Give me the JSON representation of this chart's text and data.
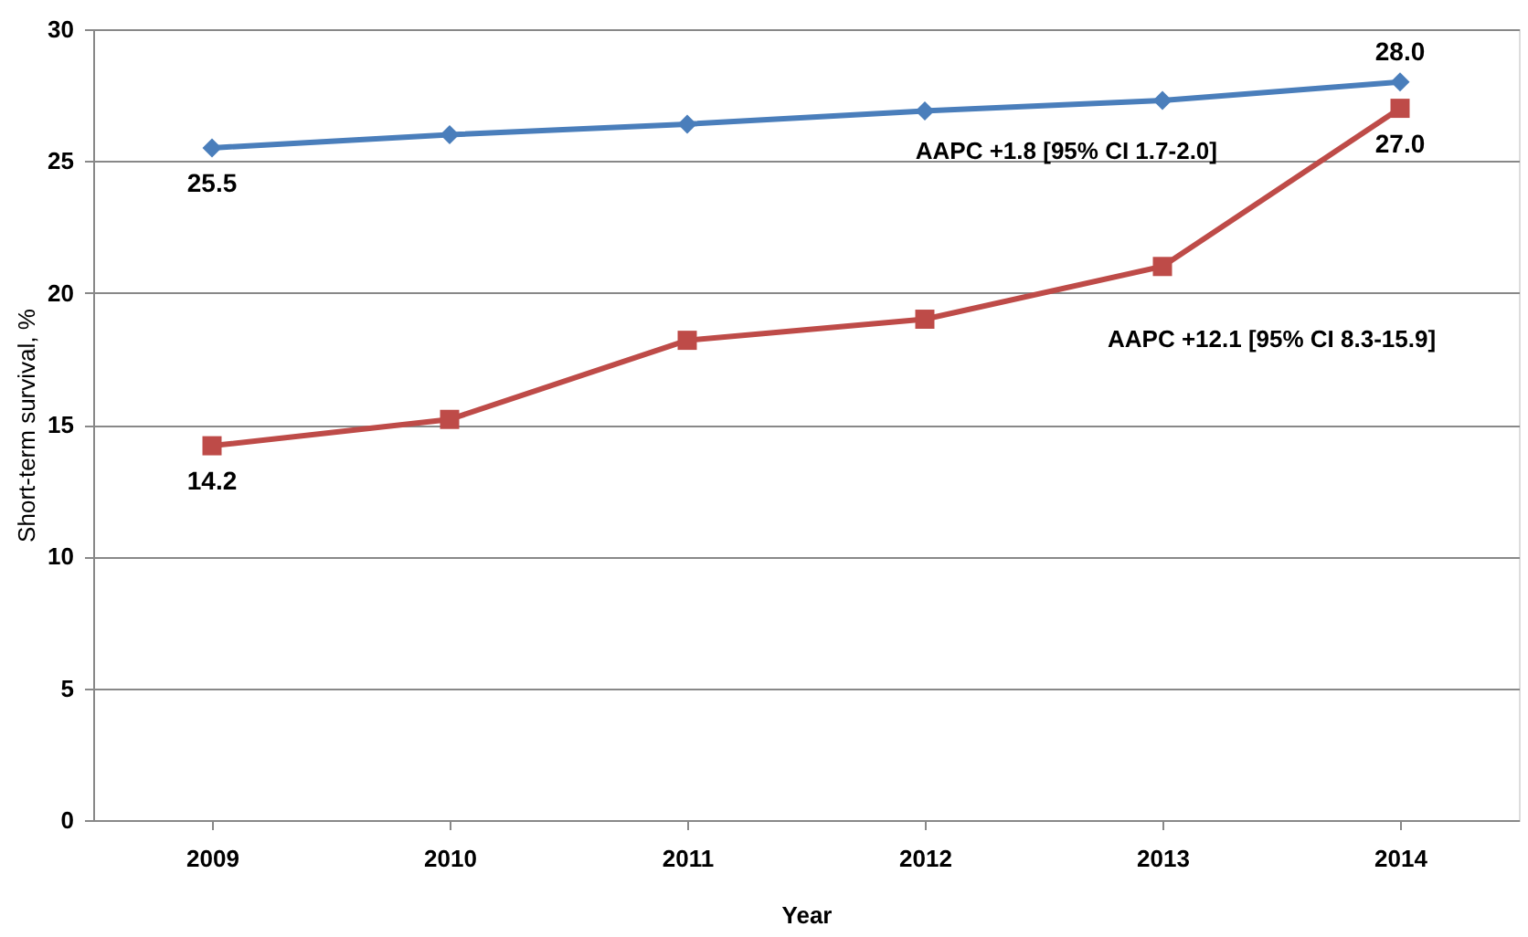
{
  "chart_data": {
    "type": "line",
    "xlabel": "Year",
    "ylabel": "Short-term survival, %",
    "categories": [
      "2009",
      "2010",
      "2011",
      "2012",
      "2013",
      "2014"
    ],
    "series": [
      {
        "color": "#4a7ebb",
        "marker": "diamond",
        "values": [
          25.5,
          26.0,
          26.4,
          26.9,
          27.3,
          28.0
        ],
        "value_labels": [
          "25.5",
          null,
          null,
          null,
          null,
          "28.0"
        ]
      },
      {
        "color": "#be4b48",
        "marker": "square",
        "values": [
          14.2,
          15.2,
          18.2,
          19.0,
          21.0,
          27.0
        ],
        "value_labels": [
          "14.2",
          null,
          null,
          null,
          null,
          "27.0"
        ]
      }
    ],
    "annotations": [
      "AAPC +1.8 [95% CI 1.7-2.0]",
      "AAPC +12.1 [95% CI 8.3-15.9]"
    ],
    "ylim": [
      0,
      30
    ],
    "yticks": [
      0,
      5,
      10,
      15,
      20,
      25,
      30
    ],
    "grid": "y",
    "legend": false,
    "line_style": "solid"
  }
}
